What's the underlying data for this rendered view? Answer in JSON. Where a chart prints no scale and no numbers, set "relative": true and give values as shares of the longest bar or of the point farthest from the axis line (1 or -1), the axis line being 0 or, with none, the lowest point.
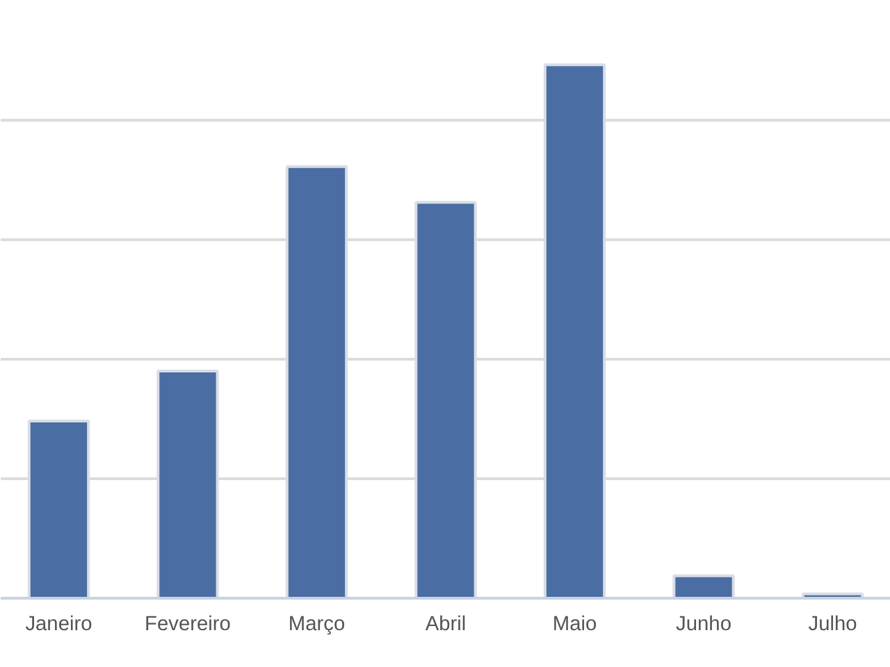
{
  "chart_data": {
    "type": "bar",
    "relative": true,
    "grid": "y",
    "color": "#4a6da3",
    "categories": [
      "Janeiro",
      "Fevereiro",
      "Março",
      "Abril",
      "Maio",
      "Junho",
      "Julho"
    ],
    "values": [
      0.332,
      0.426,
      0.809,
      0.742,
      1,
      0.042,
      0.008
    ]
  }
}
